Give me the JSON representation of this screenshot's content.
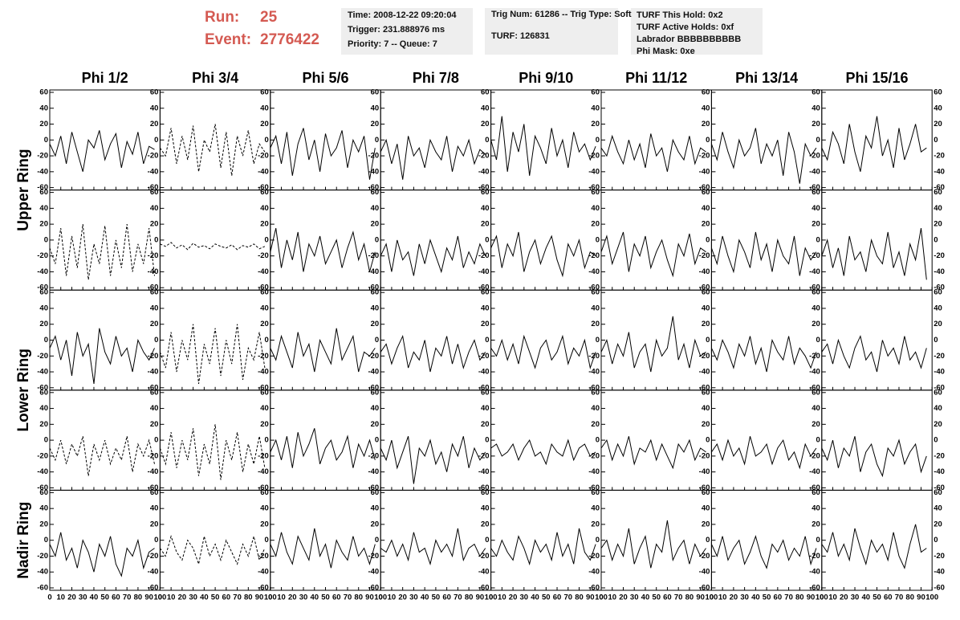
{
  "header": {
    "run_label": "Run:",
    "run": "25",
    "event_label": "Event:",
    "event": "2776422",
    "boxes": [
      [
        "Time: 2008-12-22 09:20:04",
        "Trigger: 231.888976 ms",
        "Priority: 7 -- Queue: 7"
      ],
      [
        "Trig Num: 61286 -- Trig Type: Soft",
        "TURF: 126831"
      ],
      [
        "TURF This Hold: 0x2",
        "TURF Active Holds: 0xf",
        "Labrador BBBBBBBBBB",
        "Phi Mask: 0xe"
      ]
    ]
  },
  "grid": {
    "columns": [
      "Phi 1/2",
      "Phi 3/4",
      "Phi 5/6",
      "Phi 7/8",
      "Phi 9/10",
      "Phi 11/12",
      "Phi 13/14",
      "Phi 15/16"
    ],
    "rings": [
      "Upper Ring",
      "Lower Ring",
      "Nadir Ring"
    ],
    "xlim": [
      0,
      100
    ],
    "xticks": [
      0,
      10,
      20,
      30,
      40,
      50,
      60,
      70,
      80,
      90,
      100
    ],
    "ylim": [
      -60,
      60
    ],
    "yticks": [
      60,
      40,
      20,
      0,
      -20,
      -40,
      -60
    ],
    "x": [
      0,
      5,
      10,
      15,
      20,
      25,
      30,
      35,
      40,
      45,
      50,
      55,
      60,
      65,
      70,
      75,
      80,
      85,
      90,
      95
    ],
    "panels": [
      [
        {
          "dashed": false,
          "values": [
            -5,
            -20,
            5,
            -30,
            10,
            -15,
            -40,
            0,
            -10,
            12,
            -25,
            -5,
            8,
            -35,
            -2,
            -18,
            10,
            -30,
            -8,
            -12
          ]
        },
        {
          "dashed": true,
          "values": [
            -10,
            -20,
            15,
            -30,
            5,
            -25,
            18,
            -40,
            0,
            -15,
            20,
            -35,
            10,
            -45,
            5,
            -20,
            12,
            -30,
            -5,
            -15
          ]
        },
        {
          "dashed": false,
          "values": [
            -10,
            5,
            -30,
            10,
            -45,
            -5,
            15,
            -25,
            0,
            -40,
            8,
            -20,
            -10,
            12,
            -35,
            0,
            -15,
            5,
            -50,
            -10
          ]
        },
        {
          "dashed": false,
          "values": [
            -15,
            0,
            -30,
            -5,
            -50,
            5,
            -20,
            -10,
            -35,
            0,
            -15,
            -25,
            5,
            -40,
            -8,
            -20,
            0,
            -30,
            -12,
            -18
          ]
        },
        {
          "dashed": false,
          "values": [
            0,
            -25,
            30,
            -40,
            10,
            -15,
            20,
            -45,
            5,
            -10,
            -30,
            15,
            -20,
            0,
            -35,
            10,
            -15,
            -5,
            -25,
            -8
          ]
        },
        {
          "dashed": false,
          "values": [
            -10,
            -20,
            5,
            -15,
            -30,
            0,
            -25,
            -5,
            -35,
            8,
            -20,
            -10,
            -40,
            0,
            -15,
            -25,
            5,
            -30,
            -10,
            -15
          ]
        },
        {
          "dashed": false,
          "values": [
            -5,
            -25,
            10,
            -15,
            -35,
            0,
            -20,
            -10,
            15,
            -30,
            -5,
            -20,
            0,
            -45,
            10,
            -15,
            -55,
            -5,
            -20,
            -10
          ]
        },
        {
          "dashed": false,
          "values": [
            -10,
            -25,
            10,
            -5,
            -30,
            20,
            -15,
            -40,
            5,
            -10,
            30,
            -20,
            0,
            -35,
            15,
            -25,
            -5,
            20,
            -15,
            -10
          ]
        }
      ],
      [
        {
          "dashed": true,
          "values": [
            -10,
            -30,
            15,
            -45,
            5,
            -35,
            20,
            -50,
            -5,
            -30,
            18,
            -45,
            0,
            -35,
            20,
            -40,
            -5,
            -30,
            15,
            -45
          ]
        },
        {
          "dashed": true,
          "values": [
            -5,
            -8,
            -3,
            -10,
            -6,
            -12,
            -4,
            -9,
            -7,
            -11,
            -5,
            -8,
            -10,
            -6,
            -12,
            -7,
            -9,
            -5,
            -11,
            -8
          ]
        },
        {
          "dashed": false,
          "values": [
            -15,
            15,
            -35,
            0,
            -25,
            10,
            -40,
            -5,
            -20,
            5,
            -30,
            -15,
            0,
            -35,
            -10,
            10,
            -25,
            -5,
            -40,
            -15
          ]
        },
        {
          "dashed": false,
          "values": [
            -20,
            -5,
            -40,
            0,
            -25,
            -15,
            -45,
            -5,
            -30,
            0,
            -20,
            -40,
            -10,
            -25,
            5,
            -35,
            -15,
            -30,
            -5,
            -20
          ]
        },
        {
          "dashed": false,
          "values": [
            -10,
            5,
            -35,
            -5,
            -20,
            10,
            -40,
            -15,
            0,
            -30,
            -10,
            5,
            -25,
            -45,
            -5,
            -20,
            0,
            -35,
            -15,
            -20
          ]
        },
        {
          "dashed": false,
          "values": [
            -15,
            5,
            -30,
            -10,
            10,
            -40,
            -5,
            -20,
            5,
            -35,
            -15,
            0,
            -25,
            -45,
            -5,
            -20,
            8,
            -30,
            -10,
            -15
          ]
        },
        {
          "dashed": false,
          "values": [
            -10,
            -30,
            5,
            -20,
            -40,
            0,
            -15,
            -35,
            10,
            -25,
            -5,
            -40,
            0,
            -20,
            -30,
            5,
            -45,
            -10,
            -25,
            -15
          ]
        },
        {
          "dashed": false,
          "values": [
            -20,
            0,
            -35,
            -10,
            -45,
            5,
            -25,
            -15,
            -40,
            0,
            -20,
            -30,
            10,
            -35,
            -15,
            -45,
            -5,
            -25,
            15,
            -50
          ]
        }
      ],
      [
        {
          "dashed": false,
          "values": [
            -10,
            5,
            -25,
            0,
            -45,
            10,
            -20,
            -5,
            -55,
            15,
            -15,
            -30,
            5,
            -20,
            -10,
            -40,
            0,
            -15,
            -25,
            -10
          ]
        },
        {
          "dashed": true,
          "values": [
            -15,
            -35,
            10,
            -40,
            0,
            -25,
            20,
            -55,
            -5,
            -30,
            15,
            -45,
            0,
            -30,
            20,
            -50,
            -10,
            -25,
            10,
            -35
          ]
        },
        {
          "dashed": false,
          "values": [
            -10,
            -25,
            5,
            -15,
            -35,
            10,
            -20,
            -5,
            -40,
            0,
            -15,
            -30,
            15,
            -25,
            -10,
            5,
            -40,
            -15,
            -20,
            -10
          ]
        },
        {
          "dashed": false,
          "values": [
            -15,
            -5,
            -30,
            -10,
            5,
            -35,
            -15,
            -25,
            0,
            -40,
            -10,
            -20,
            5,
            -30,
            -5,
            -35,
            -15,
            0,
            -25,
            -15
          ]
        },
        {
          "dashed": false,
          "values": [
            -10,
            -20,
            0,
            -25,
            -5,
            -30,
            5,
            -15,
            -35,
            -10,
            0,
            -25,
            -15,
            5,
            -30,
            -10,
            -20,
            0,
            -35,
            -15
          ]
        },
        {
          "dashed": false,
          "values": [
            -15,
            0,
            -30,
            -5,
            -20,
            10,
            -35,
            -15,
            -5,
            -40,
            0,
            -20,
            -10,
            30,
            -25,
            -5,
            -35,
            0,
            -20,
            -15
          ]
        },
        {
          "dashed": false,
          "values": [
            -10,
            -25,
            0,
            -15,
            -35,
            -5,
            -20,
            5,
            -30,
            -10,
            -40,
            0,
            -15,
            -25,
            5,
            -30,
            -10,
            -20,
            -35,
            -15
          ]
        },
        {
          "dashed": false,
          "values": [
            -15,
            -5,
            -30,
            0,
            -20,
            -35,
            -10,
            5,
            -25,
            -15,
            -40,
            0,
            -20,
            -10,
            -30,
            5,
            -25,
            -15,
            -35,
            -10
          ]
        }
      ],
      [
        {
          "dashed": true,
          "values": [
            -10,
            -25,
            0,
            -30,
            -5,
            -20,
            5,
            -45,
            -5,
            -25,
            0,
            -30,
            -10,
            -25,
            5,
            -40,
            -5,
            -20,
            0,
            -30
          ]
        },
        {
          "dashed": true,
          "values": [
            -10,
            -30,
            10,
            -35,
            0,
            -25,
            15,
            -45,
            -5,
            -30,
            20,
            -50,
            0,
            -25,
            10,
            -40,
            -5,
            -30,
            5,
            -35
          ]
        },
        {
          "dashed": false,
          "values": [
            -15,
            0,
            -25,
            5,
            -35,
            10,
            -20,
            -5,
            15,
            -30,
            -10,
            0,
            -25,
            -15,
            5,
            -35,
            -5,
            -20,
            0,
            -25
          ]
        },
        {
          "dashed": false,
          "values": [
            -10,
            -25,
            0,
            -35,
            -15,
            5,
            -55,
            -10,
            -20,
            0,
            -30,
            -15,
            -40,
            -5,
            -20,
            5,
            -35,
            -10,
            -25,
            -15
          ]
        },
        {
          "dashed": false,
          "values": [
            -10,
            -5,
            -20,
            -15,
            -5,
            -25,
            -10,
            0,
            -20,
            -15,
            -30,
            -5,
            -15,
            -20,
            0,
            -25,
            -10,
            -5,
            -20,
            -15
          ]
        },
        {
          "dashed": false,
          "values": [
            -10,
            0,
            -25,
            -5,
            -20,
            5,
            -30,
            -10,
            -15,
            0,
            -25,
            -5,
            -20,
            -35,
            -5,
            -15,
            0,
            -25,
            -10,
            -15
          ]
        },
        {
          "dashed": false,
          "values": [
            -15,
            -5,
            -25,
            0,
            -20,
            -10,
            -30,
            5,
            -20,
            -15,
            -5,
            -30,
            -10,
            0,
            -25,
            -15,
            -35,
            -5,
            -20,
            -10
          ]
        },
        {
          "dashed": false,
          "values": [
            -10,
            -25,
            0,
            -35,
            -10,
            -20,
            5,
            -40,
            -15,
            -5,
            -30,
            -45,
            -10,
            -20,
            0,
            -30,
            -15,
            -5,
            -40,
            -20
          ]
        }
      ],
      [
        {
          "dashed": false,
          "values": [
            -5,
            -20,
            10,
            -25,
            -10,
            -35,
            0,
            -15,
            -40,
            -5,
            -20,
            5,
            -30,
            -45,
            -10,
            -20,
            0,
            -35,
            -15,
            -10
          ]
        },
        {
          "dashed": true,
          "values": [
            -10,
            -20,
            5,
            -15,
            -25,
            0,
            -10,
            -30,
            5,
            -20,
            -5,
            -25,
            0,
            -15,
            -30,
            -5,
            -20,
            5,
            -25,
            -10
          ]
        },
        {
          "dashed": false,
          "values": [
            -5,
            -20,
            10,
            -15,
            -30,
            5,
            -10,
            -25,
            15,
            -20,
            -5,
            -35,
            0,
            -15,
            -25,
            5,
            -20,
            -10,
            -30,
            -5
          ]
        },
        {
          "dashed": false,
          "values": [
            -10,
            -15,
            0,
            -20,
            -5,
            -25,
            10,
            -15,
            -10,
            -30,
            0,
            -15,
            -5,
            -20,
            15,
            -25,
            -10,
            -5,
            -20,
            -10
          ]
        },
        {
          "dashed": false,
          "values": [
            -10,
            -20,
            0,
            -15,
            -25,
            5,
            -10,
            -30,
            0,
            -15,
            -5,
            -25,
            10,
            -20,
            -5,
            -30,
            15,
            -15,
            -25,
            -5
          ]
        },
        {
          "dashed": false,
          "values": [
            -10,
            0,
            -25,
            -5,
            -20,
            15,
            -30,
            -10,
            5,
            -35,
            -5,
            -15,
            25,
            -25,
            -10,
            0,
            -30,
            -5,
            -20,
            -10
          ]
        },
        {
          "dashed": false,
          "values": [
            -5,
            -20,
            5,
            -25,
            -10,
            0,
            -30,
            -15,
            5,
            -20,
            -35,
            -5,
            -15,
            0,
            -25,
            -10,
            -20,
            5,
            -30,
            -10
          ]
        },
        {
          "dashed": false,
          "values": [
            -5,
            -15,
            10,
            -20,
            -5,
            -25,
            15,
            -10,
            -30,
            0,
            -15,
            -5,
            -25,
            10,
            -20,
            -35,
            -5,
            20,
            -15,
            -10
          ]
        }
      ]
    ]
  }
}
